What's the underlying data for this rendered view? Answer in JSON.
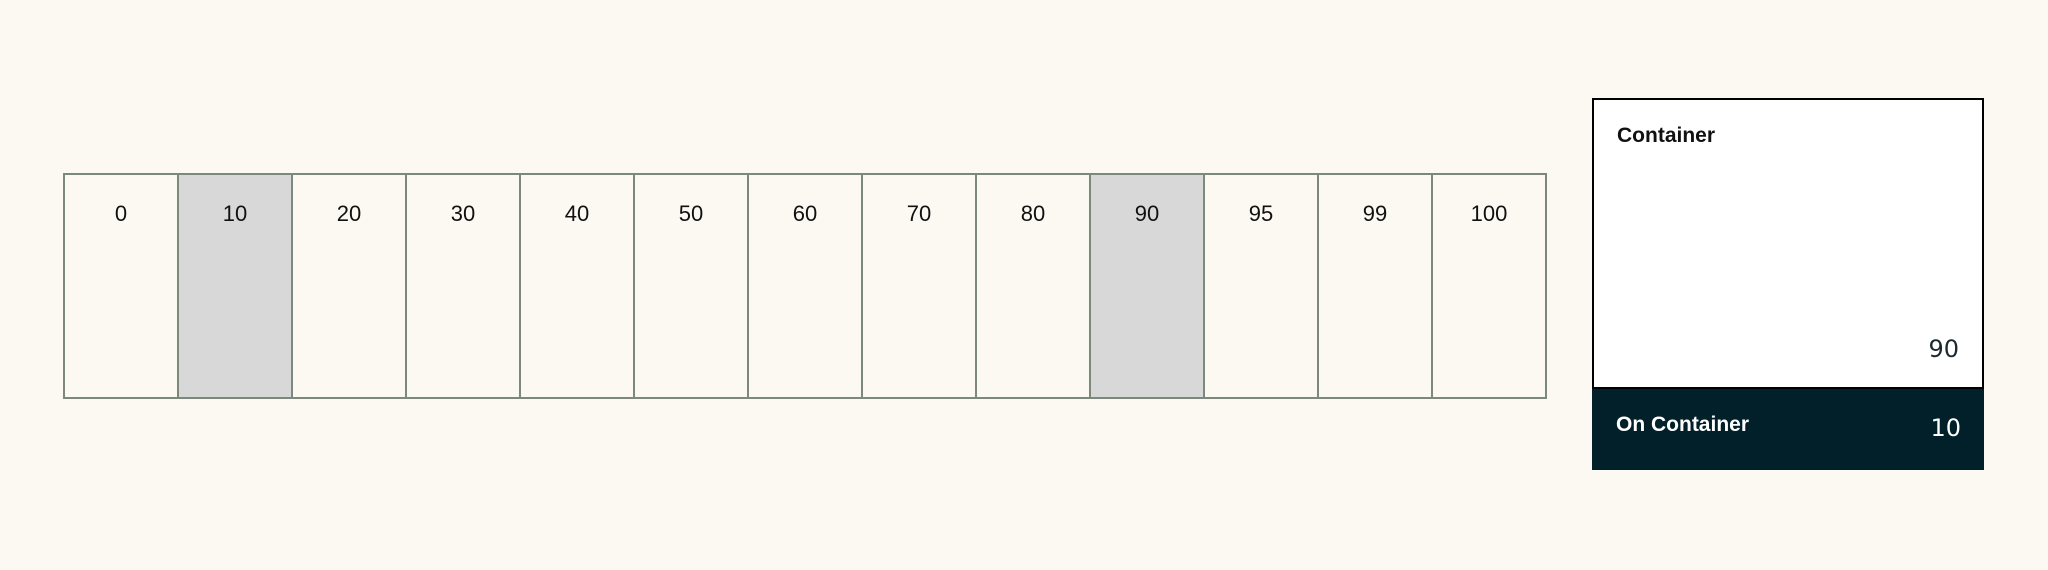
{
  "scale": {
    "steps": [
      "0",
      "10",
      "20",
      "30",
      "40",
      "50",
      "60",
      "70",
      "80",
      "90",
      "95",
      "99",
      "100"
    ],
    "highlighted": [
      "10",
      "90"
    ],
    "highlight_color": "#d8d8d8",
    "border_color": "#7b887b"
  },
  "panel": {
    "container": {
      "label": "Container",
      "value": "90",
      "color": "#ffffff"
    },
    "on_container": {
      "label": "On Container",
      "value": "10",
      "color": "#01202a"
    }
  }
}
